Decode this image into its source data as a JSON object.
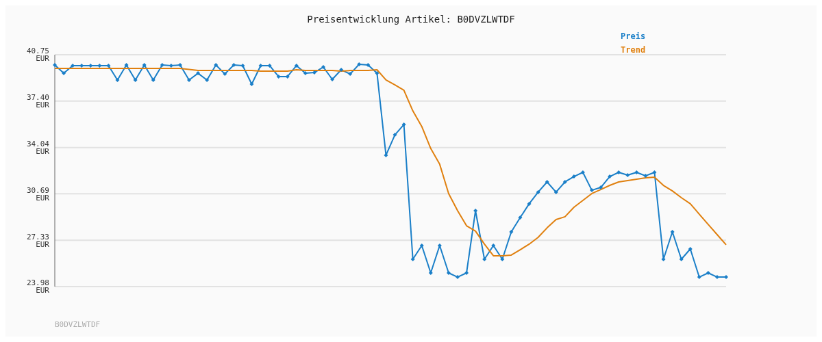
{
  "chart_data": {
    "type": "line",
    "title": "Preisentwicklung Artikel: B0DVZLWTDF",
    "annotations": [
      "B0DVZLWTDF"
    ],
    "categories": [
      null,
      null,
      null,
      null,
      null,
      null,
      null,
      null,
      null,
      null,
      null,
      null,
      null,
      null,
      null,
      null,
      null,
      null,
      null,
      null,
      null,
      null,
      null,
      null,
      null,
      null,
      null,
      null,
      null,
      null,
      null,
      null,
      null,
      null,
      null,
      null,
      null,
      null,
      null,
      null,
      null,
      null,
      null,
      null,
      null,
      null,
      null,
      null,
      null,
      null,
      null,
      null,
      null,
      null,
      null,
      null,
      null,
      null,
      null,
      null,
      null,
      null,
      null,
      null,
      null,
      null,
      null,
      null,
      null,
      null,
      null,
      null,
      null,
      null,
      null,
      null
    ],
    "series": [
      {
        "name": "Preis",
        "color": "#1a7fc8",
        "marker": "diamond",
        "values": [
          40.01,
          39.41,
          39.96,
          39.96,
          39.96,
          39.96,
          39.96,
          38.92,
          40.01,
          38.92,
          40.01,
          38.92,
          40.01,
          39.96,
          40.01,
          38.92,
          39.41,
          38.92,
          40.01,
          39.36,
          40.01,
          39.96,
          38.62,
          39.96,
          39.96,
          39.17,
          39.17,
          39.96,
          39.41,
          39.46,
          39.86,
          38.97,
          39.66,
          39.36,
          40.06,
          40.01,
          39.41,
          33.48,
          34.96,
          35.7,
          25.96,
          26.95,
          24.97,
          26.95,
          24.97,
          24.67,
          24.97,
          29.47,
          25.96,
          26.95,
          25.96,
          27.94,
          28.98,
          29.97,
          30.81,
          31.55,
          30.81,
          31.55,
          31.94,
          32.24,
          30.95,
          31.15,
          31.94,
          32.24,
          32.04,
          32.24,
          31.99,
          32.24,
          25.96,
          27.94,
          25.96,
          26.7,
          24.67,
          24.97,
          24.67,
          24.67
        ]
      },
      {
        "name": "Trend",
        "color": "#e0800f",
        "marker": "none",
        "values": [
          39.76,
          39.76,
          39.76,
          39.76,
          39.76,
          39.76,
          39.76,
          39.76,
          39.76,
          39.76,
          39.76,
          39.76,
          39.76,
          39.76,
          39.76,
          39.69,
          39.61,
          39.61,
          39.61,
          39.61,
          39.61,
          39.61,
          39.61,
          39.56,
          39.56,
          39.56,
          39.56,
          39.66,
          39.61,
          39.61,
          39.61,
          39.61,
          39.56,
          39.61,
          39.61,
          39.61,
          39.66,
          38.93,
          38.57,
          38.18,
          36.69,
          35.56,
          33.97,
          32.83,
          30.71,
          29.47,
          28.38,
          27.99,
          27.05,
          26.21,
          26.21,
          26.26,
          26.65,
          27.05,
          27.54,
          28.23,
          28.83,
          29.03,
          29.72,
          30.21,
          30.71,
          31.0,
          31.3,
          31.55,
          31.65,
          31.75,
          31.85,
          31.9,
          31.3,
          30.9,
          30.41,
          29.97,
          29.22,
          28.48,
          27.74,
          27.0
        ]
      }
    ],
    "ylim": [
      23.98,
      40.75
    ],
    "yticks": [
      {
        "value": 23.98,
        "label": "23.98 EUR"
      },
      {
        "value": 27.33,
        "label": "27.33 EUR"
      },
      {
        "value": 30.69,
        "label": "30.69 EUR"
      },
      {
        "value": 34.04,
        "label": "34.04 EUR"
      },
      {
        "value": 37.4,
        "label": "37.40 EUR"
      },
      {
        "value": 40.75,
        "label": "40.75 EUR"
      }
    ],
    "grid": "y",
    "legend": "top right",
    "line_style": "solid"
  }
}
